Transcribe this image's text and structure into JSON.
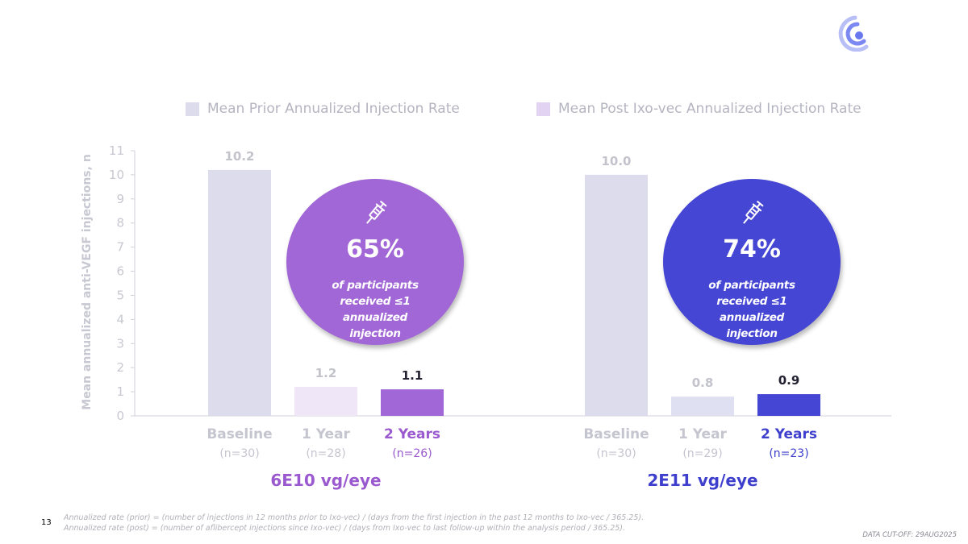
{
  "legend": {
    "prior": {
      "label": "Mean Prior Annualized Injection Rate",
      "color": "#dcdcec"
    },
    "post": {
      "label": "Mean Post Ixo-vec Annualized Injection Rate",
      "color": "#e3d3f3"
    }
  },
  "chart_data": {
    "type": "bar",
    "ylabel": "Mean annualized anti-VEGF injections, n",
    "ylim": [
      0,
      11
    ],
    "yticks": [
      0,
      1,
      2,
      3,
      4,
      5,
      6,
      7,
      8,
      9,
      10,
      11
    ],
    "groups": [
      {
        "name": "6E10 vg/eye",
        "color": "#9a59cf",
        "bars": [
          {
            "label": "Baseline",
            "n": "(n=30)",
            "value": 10.2,
            "value_label": "10.2",
            "color": "#dcdcec",
            "label_color": "#c5c5d0",
            "value_color": "#c3c3cc"
          },
          {
            "label": "1 Year",
            "n": "(n=28)",
            "value": 1.2,
            "value_label": "1.2",
            "color": "#efe6f8",
            "label_color": "#c5c5d0",
            "value_color": "#c3c3cc"
          },
          {
            "label": "2 Years",
            "n": "(n=26)",
            "value": 1.1,
            "value_label": "1.1",
            "color": "#a267d6",
            "label_color": "#9a59cf",
            "value_color": "#222233"
          }
        ],
        "callout": {
          "percent": "65%",
          "text_lines": [
            "of participants received ≤1",
            "annualized",
            "injection"
          ],
          "color": "#a267d6"
        }
      },
      {
        "name": "2E11 vg/eye",
        "color": "#3e3fcc",
        "bars": [
          {
            "label": "Baseline",
            "n": "(n=30)",
            "value": 10.0,
            "value_label": "10.0",
            "color": "#dcdcec",
            "label_color": "#c5c5d0",
            "value_color": "#c3c3cc"
          },
          {
            "label": "1 Year",
            "n": "(n=29)",
            "value": 0.8,
            "value_label": "0.8",
            "color": "#e0e0f3",
            "label_color": "#c5c5d0",
            "value_color": "#c3c3cc"
          },
          {
            "label": "2 Years",
            "n": "(n=23)",
            "value": 0.9,
            "value_label": "0.9",
            "color": "#4646d4",
            "label_color": "#3e3fcc",
            "value_color": "#222233"
          }
        ],
        "callout": {
          "percent": "74%",
          "text_lines": [
            "of participants received ≤1",
            "annualized",
            "injection"
          ],
          "color": "#4646d4"
        }
      }
    ]
  },
  "footnotes": [
    "Annualized rate (prior) = (number of injections in 12 months prior to Ixo-vec) / (days from the first injection in the past 12 months to Ixo-vec / 365.25).",
    "Annualized rate (post) = (number of aflibercept injections since Ixo-vec) / (days from Ixo-vec to last follow-up within the analysis period / 365.25)."
  ],
  "page_number": "13",
  "data_cutoff": "DATA CUT-OFF: 29AUG2025",
  "logo": {
    "icon": "company-logo-icon",
    "color": "#6a78f0"
  }
}
